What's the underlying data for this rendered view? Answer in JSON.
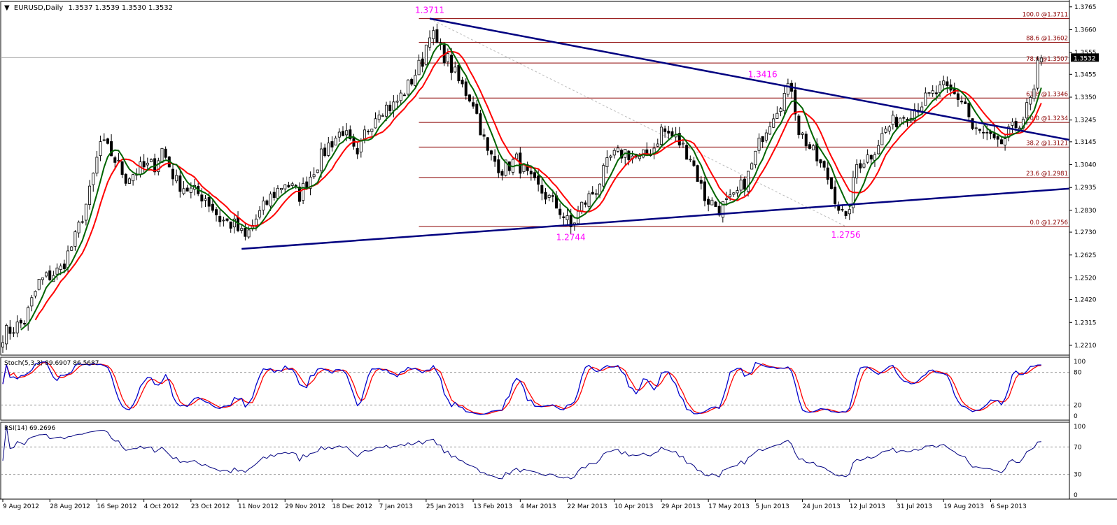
{
  "chart_data": {
    "type": "candlestick",
    "symbol_header": {
      "arrow": "▼",
      "title": "EURUSD,Daily",
      "ohlc": "1.3537 1.3539 1.3530 1.3532"
    },
    "price_axis": {
      "min": 1.2165,
      "max": 1.379,
      "ticks": [
        "1.3765",
        "1.3660",
        "1.3555",
        "1.3455",
        "1.3350",
        "1.3245",
        "1.3145",
        "1.3040",
        "1.2935",
        "1.2830",
        "1.2730",
        "1.2625",
        "1.2520",
        "1.2420",
        "1.2315",
        "1.2210"
      ],
      "current_price": "1.3532"
    },
    "x_axis": {
      "bars": 288,
      "labels": [
        {
          "text": "9 Aug 2012",
          "bar": 0
        },
        {
          "text": "28 Aug 2012",
          "bar": 13
        },
        {
          "text": "16 Sep 2012",
          "bar": 26
        },
        {
          "text": "4 Oct 2012",
          "bar": 39
        },
        {
          "text": "23 Oct 2012",
          "bar": 52
        },
        {
          "text": "11 Nov 2012",
          "bar": 65
        },
        {
          "text": "29 Nov 2012",
          "bar": 78
        },
        {
          "text": "18 Dec 2012",
          "bar": 91
        },
        {
          "text": "7 Jan 2013",
          "bar": 104
        },
        {
          "text": "25 Jan 2013",
          "bar": 117
        },
        {
          "text": "13 Feb 2013",
          "bar": 130
        },
        {
          "text": "4 Mar 2013",
          "bar": 143
        },
        {
          "text": "22 Mar 2013",
          "bar": 156
        },
        {
          "text": "10 Apr 2013",
          "bar": 169
        },
        {
          "text": "29 Apr 2013",
          "bar": 182
        },
        {
          "text": "17 May 2013",
          "bar": 195
        },
        {
          "text": "5 Jun 2013",
          "bar": 208
        },
        {
          "text": "24 Jun 2013",
          "bar": 221
        },
        {
          "text": "12 Jul 2013",
          "bar": 234
        },
        {
          "text": "31 Jul 2013",
          "bar": 247
        },
        {
          "text": "19 Aug 2013",
          "bar": 260
        },
        {
          "text": "6 Sep 2013",
          "bar": 273
        }
      ]
    },
    "price_path": [
      [
        0,
        1.226
      ],
      [
        6,
        1.232
      ],
      [
        10,
        1.25
      ],
      [
        16,
        1.256
      ],
      [
        20,
        1.27
      ],
      [
        24,
        1.291
      ],
      [
        27,
        1.314
      ],
      [
        30,
        1.309
      ],
      [
        34,
        1.298
      ],
      [
        38,
        1.302
      ],
      [
        42,
        1.304
      ],
      [
        44,
        1.311
      ],
      [
        48,
        1.296
      ],
      [
        52,
        1.292
      ],
      [
        56,
        1.289
      ],
      [
        60,
        1.279
      ],
      [
        64,
        1.276
      ],
      [
        67,
        1.27
      ],
      [
        70,
        1.279
      ],
      [
        74,
        1.289
      ],
      [
        78,
        1.296
      ],
      [
        82,
        1.29
      ],
      [
        86,
        1.302
      ],
      [
        90,
        1.313
      ],
      [
        94,
        1.32
      ],
      [
        98,
        1.306
      ],
      [
        100,
        1.318
      ],
      [
        104,
        1.33
      ],
      [
        108,
        1.331
      ],
      [
        112,
        1.34
      ],
      [
        116,
        1.352
      ],
      [
        118,
        1.366
      ],
      [
        120,
        1.359
      ],
      [
        123,
        1.352
      ],
      [
        126,
        1.342
      ],
      [
        130,
        1.333
      ],
      [
        134,
        1.309
      ],
      [
        138,
        1.302
      ],
      [
        142,
        1.306
      ],
      [
        146,
        1.296
      ],
      [
        150,
        1.29
      ],
      [
        154,
        1.283
      ],
      [
        157,
        1.275
      ],
      [
        160,
        1.285
      ],
      [
        164,
        1.293
      ],
      [
        168,
        1.307
      ],
      [
        172,
        1.31
      ],
      [
        176,
        1.306
      ],
      [
        180,
        1.312
      ],
      [
        182,
        1.32
      ],
      [
        186,
        1.316
      ],
      [
        190,
        1.308
      ],
      [
        194,
        1.289
      ],
      [
        198,
        1.284
      ],
      [
        202,
        1.288
      ],
      [
        206,
        1.299
      ],
      [
        210,
        1.318
      ],
      [
        213,
        1.328
      ],
      [
        216,
        1.336
      ],
      [
        218,
        1.34
      ],
      [
        220,
        1.32
      ],
      [
        224,
        1.309
      ],
      [
        228,
        1.298
      ],
      [
        231,
        1.285
      ],
      [
        233,
        1.277
      ],
      [
        236,
        1.304
      ],
      [
        240,
        1.309
      ],
      [
        244,
        1.32
      ],
      [
        248,
        1.326
      ],
      [
        252,
        1.33
      ],
      [
        256,
        1.335
      ],
      [
        260,
        1.339
      ],
      [
        264,
        1.335
      ],
      [
        266,
        1.332
      ],
      [
        268,
        1.32
      ],
      [
        272,
        1.317
      ],
      [
        275,
        1.312
      ],
      [
        278,
        1.318
      ],
      [
        282,
        1.326
      ],
      [
        285,
        1.337
      ],
      [
        286,
        1.352
      ],
      [
        287,
        1.353
      ]
    ],
    "fibonacci": [
      {
        "label": "100.0 @1.3711",
        "price": 1.3711
      },
      {
        "label": "88.6 @1.3602",
        "price": 1.3602
      },
      {
        "label": "78.6 @1.3507",
        "price": 1.3507
      },
      {
        "label": "61.8 @1.3346",
        "price": 1.3346
      },
      {
        "label": "50.0 @1.3234",
        "price": 1.3234
      },
      {
        "label": "38.2 @1.3121",
        "price": 1.3121
      },
      {
        "label": "23.6 @1.2981",
        "price": 1.2981
      },
      {
        "label": "0.0 @1.2756",
        "price": 1.2756
      }
    ],
    "trendlines": [
      {
        "name": "descending",
        "from": [
          118,
          1.3711
        ],
        "to": [
          295,
          1.3154
        ]
      },
      {
        "name": "ascending",
        "from": [
          66,
          1.2653
        ],
        "to": [
          311,
          1.293
        ]
      }
    ],
    "annotations": [
      {
        "text": "1.3711",
        "bar": 118,
        "price": 1.3711
      },
      {
        "text": "1.3416",
        "bar": 210,
        "price": 1.3416
      },
      {
        "text": "1.2744",
        "bar": 157,
        "price": 1.2744
      },
      {
        "text": "1.2756",
        "bar": 233,
        "price": 1.2756
      }
    ],
    "stochastic": {
      "label": "Stoch(5,3,3) 89.6907 86.5687",
      "ticks": [
        "100",
        "80",
        "20",
        "0"
      ],
      "levels": [
        80,
        20
      ]
    },
    "rsi": {
      "label": "RSI(14) 69.2696",
      "ticks": [
        "100",
        "70",
        "30",
        "0"
      ],
      "levels": [
        70,
        30
      ]
    },
    "colors": {
      "bull": "#ffffff",
      "bear": "#000000",
      "fib": "#8b0000",
      "trend": "#000080",
      "fast_ma": "#ff0000",
      "slow_ma": "#006400",
      "stoch_main": "#0000cc",
      "stoch_signal": "#ff0000",
      "rsi": "#000080",
      "annotation": "#ff00ff",
      "grid": "#000000"
    }
  }
}
